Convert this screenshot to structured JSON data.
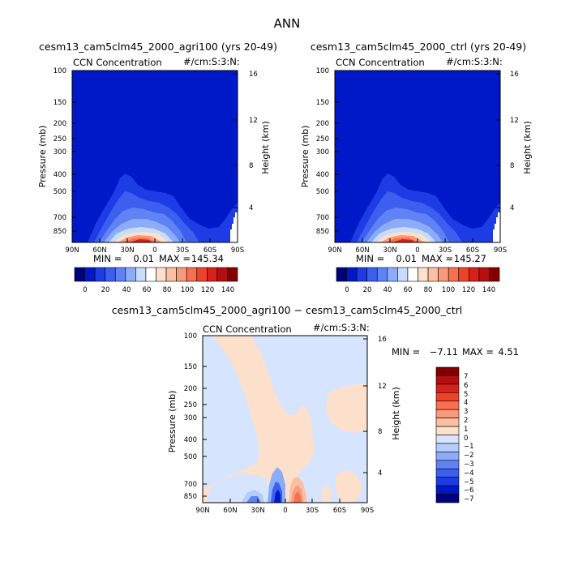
{
  "figure": {
    "title": "ANN"
  },
  "colors": {
    "seq": [
      "#00007f",
      "#0019c8",
      "#1e3ce6",
      "#3c5ff0",
      "#5f82f5",
      "#8cacfa",
      "#c8dcfc",
      "#ffffff",
      "#fde0cc",
      "#fcbfa3",
      "#fb9a7a",
      "#f8704f",
      "#ef4329",
      "#d7211a",
      "#b40f12",
      "#820000"
    ],
    "diff": [
      "#00007f",
      "#0019c8",
      "#1e3ce6",
      "#3c5ff0",
      "#5f82f5",
      "#8cacfa",
      "#b4cdfb",
      "#d6e5fd",
      "#fde0cc",
      "#fcbfa3",
      "#fb9a7a",
      "#f8704f",
      "#ef4329",
      "#d7211a",
      "#b40f12",
      "#820000"
    ]
  },
  "chart_data": [
    {
      "type": "heatmap",
      "title": "cesm13_cam5clm45_2000_agri100 (yrs 20-49)",
      "left_label": "CCN Concentration",
      "right_label": "#/cm:S:3:N:",
      "ylabel": "Pressure (mb)",
      "ylabel_right": "Height (km)",
      "x_ticks": [
        "90N",
        "60N",
        "30N",
        "0",
        "30S",
        "60S",
        "90S"
      ],
      "y_ticks": [
        "100",
        "150",
        "200",
        "250",
        "300",
        "400",
        "500",
        "700",
        "850"
      ],
      "y_ticks_right": [
        "16",
        "12",
        "8",
        "4"
      ],
      "min_label": "MIN =",
      "min_value": "0.01",
      "max_label": "MAX =",
      "max_value": "145.34",
      "colorbar_ticks": [
        "0",
        "20",
        "40",
        "60",
        "80",
        "100",
        "120",
        "140"
      ]
    },
    {
      "type": "heatmap",
      "title": "cesm13_cam5clm45_2000_ctrl (yrs 20-49)",
      "left_label": "CCN Concentration",
      "right_label": "#/cm:S:3:N:",
      "ylabel": "Pressure (mb)",
      "ylabel_right": "Height (km)",
      "x_ticks": [
        "90N",
        "60N",
        "30N",
        "0",
        "30S",
        "60S",
        "90S"
      ],
      "y_ticks": [
        "100",
        "150",
        "200",
        "250",
        "300",
        "400",
        "500",
        "700",
        "850"
      ],
      "y_ticks_right": [
        "16",
        "12",
        "8",
        "4"
      ],
      "min_label": "MIN =",
      "min_value": "0.01",
      "max_label": "MAX =",
      "max_value": "145.27",
      "colorbar_ticks": [
        "0",
        "20",
        "40",
        "60",
        "80",
        "100",
        "120",
        "140"
      ]
    },
    {
      "type": "heatmap",
      "title": "cesm13_cam5clm45_2000_agri100 − cesm13_cam5clm45_2000_ctrl",
      "left_label": "CCN Concentration",
      "right_label": "#/cm:S:3:N:",
      "ylabel": "Pressure (mb)",
      "ylabel_right": "Height (km)",
      "x_ticks": [
        "90N",
        "60N",
        "30N",
        "0",
        "30S",
        "60S",
        "90S"
      ],
      "y_ticks": [
        "100",
        "150",
        "200",
        "250",
        "300",
        "400",
        "500",
        "700",
        "850"
      ],
      "y_ticks_right": [
        "16",
        "12",
        "8",
        "4"
      ],
      "min_label": "MIN =",
      "min_value": "−7.11",
      "max_label": "MAX =",
      "max_value": "4.51",
      "colorbar_ticks": [
        "7",
        "6",
        "5",
        "4",
        "3",
        "2",
        "1",
        "0",
        "−1",
        "−2",
        "−3",
        "−4",
        "−5",
        "−6",
        "−7"
      ]
    }
  ]
}
